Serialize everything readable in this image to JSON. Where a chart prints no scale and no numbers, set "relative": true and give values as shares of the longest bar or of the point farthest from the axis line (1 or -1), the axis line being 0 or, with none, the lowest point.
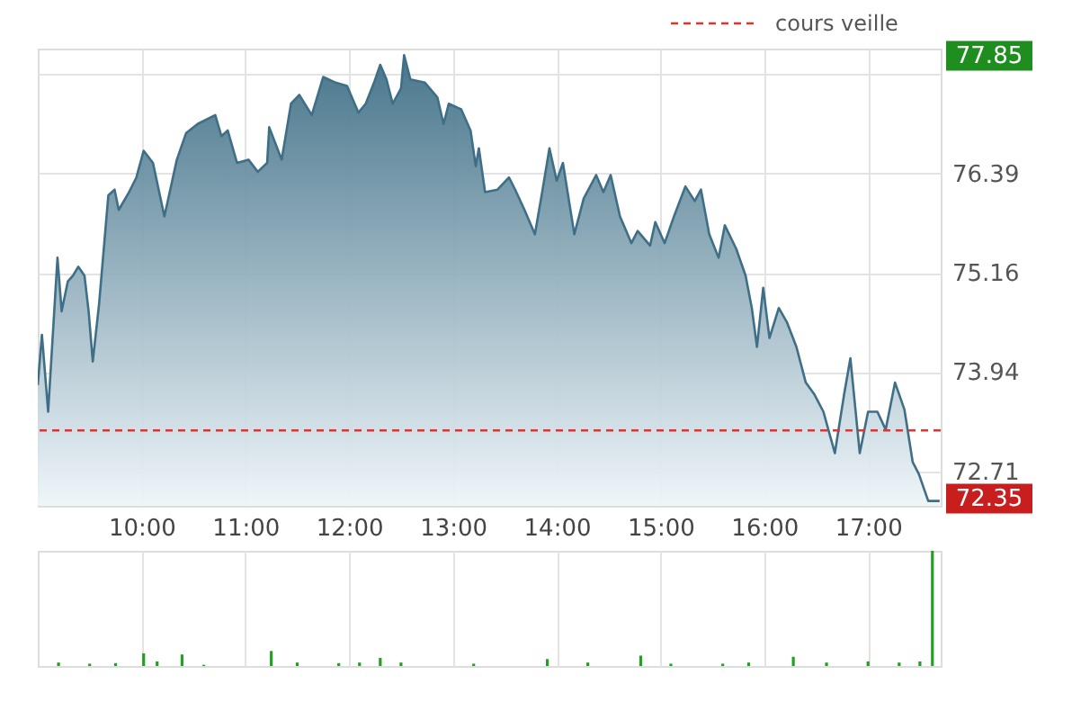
{
  "chart_data": [
    {
      "type": "area",
      "series": [
        {
          "color": "#3f6f86",
          "x": [
            9.0,
            9.04,
            9.1,
            9.19,
            9.23,
            9.29,
            9.34,
            9.39,
            9.45,
            9.49,
            9.53,
            9.59,
            9.68,
            9.74,
            9.78,
            9.88,
            9.95,
            10.02,
            10.11,
            10.17,
            10.22,
            10.34,
            10.43,
            10.54,
            10.71,
            10.77,
            10.83,
            10.92,
            11.03,
            11.12,
            11.21,
            11.23,
            11.35,
            11.44,
            11.52,
            11.64,
            11.75,
            11.87,
            11.98,
            12.09,
            12.16,
            12.24,
            12.3,
            12.36,
            12.42,
            12.5,
            12.53,
            12.59,
            12.73,
            12.85,
            12.91,
            12.96,
            13.08,
            13.17,
            13.22,
            13.25,
            13.31,
            13.43,
            13.54,
            13.6,
            13.69,
            13.74,
            13.79,
            13.86,
            13.93,
            14.0,
            14.06,
            14.17,
            14.26,
            14.38,
            14.45,
            14.52,
            14.61,
            14.72,
            14.78,
            14.9,
            14.95,
            15.04,
            15.13,
            15.24,
            15.33,
            15.39,
            15.47,
            15.56,
            15.62,
            15.73,
            15.82,
            15.88,
            15.93,
            15.99,
            16.05,
            16.14,
            16.22,
            16.31,
            16.4,
            16.48,
            16.57,
            16.68,
            16.77,
            16.83,
            16.92,
            17.0,
            17.09,
            17.17,
            17.26,
            17.35,
            17.43,
            17.49,
            17.58,
            17.69
          ],
          "values": [
            73.78,
            74.4,
            73.45,
            75.35,
            74.69,
            75.06,
            75.13,
            75.24,
            75.13,
            74.69,
            74.07,
            74.77,
            76.12,
            76.19,
            75.94,
            76.16,
            76.34,
            76.67,
            76.52,
            76.16,
            75.86,
            76.56,
            76.89,
            77.0,
            77.11,
            76.85,
            76.92,
            76.52,
            76.56,
            76.41,
            76.52,
            76.96,
            76.56,
            77.25,
            77.36,
            77.11,
            77.58,
            77.51,
            77.47,
            77.14,
            77.25,
            77.51,
            77.73,
            77.55,
            77.25,
            77.44,
            77.85,
            77.55,
            77.51,
            77.33,
            77.0,
            77.25,
            77.18,
            76.92,
            76.48,
            76.7,
            76.16,
            76.19,
            76.34,
            76.19,
            75.94,
            75.79,
            75.64,
            76.16,
            76.7,
            76.3,
            76.52,
            75.64,
            76.08,
            76.37,
            76.16,
            76.37,
            75.86,
            75.53,
            75.68,
            75.5,
            75.79,
            75.53,
            75.86,
            76.23,
            76.05,
            76.19,
            75.64,
            75.35,
            75.75,
            75.46,
            75.13,
            74.73,
            74.25,
            74.98,
            74.36,
            74.73,
            74.55,
            74.25,
            73.81,
            73.67,
            73.45,
            72.94,
            73.67,
            74.11,
            72.94,
            73.45,
            73.45,
            73.23,
            73.81,
            73.48,
            72.83,
            72.68,
            72.35,
            72.35
          ]
        }
      ],
      "xlim": [
        9.0,
        17.7
      ],
      "xticks": [
        {
          "value": 10,
          "label": "10:00"
        },
        {
          "value": 11,
          "label": "11:00"
        },
        {
          "value": 12,
          "label": "12:00"
        },
        {
          "value": 13,
          "label": "13:00"
        },
        {
          "value": 14,
          "label": "14:00"
        },
        {
          "value": 15,
          "label": "15:00"
        },
        {
          "value": 16,
          "label": "16:00"
        },
        {
          "value": 17,
          "label": "17:00"
        }
      ],
      "ylim": [
        72.29,
        77.93
      ],
      "yticks": [
        72.71,
        73.94,
        75.16,
        76.39,
        {
          "value": 77.62,
          "label": null
        }
      ],
      "grid": true,
      "ref_lines": [
        {
          "axis": "y",
          "value": 73.22,
          "label": "cours veille",
          "color": "#e8302c",
          "line_style": "dashed"
        }
      ],
      "legend": "top right",
      "annotations": [
        "77.85",
        "72.35"
      ]
    },
    {
      "type": "bar",
      "relative": true,
      "color": "#22a022",
      "x": [
        9.2,
        9.5,
        9.75,
        10.02,
        10.15,
        10.39,
        10.6,
        11.25,
        11.5,
        11.9,
        12.1,
        12.3,
        12.5,
        13.2,
        13.91,
        14.3,
        14.81,
        15.1,
        15.6,
        15.85,
        16.28,
        16.6,
        17.0,
        17.3,
        17.5,
        17.62
      ],
      "values": [
        0.03,
        0.02,
        0.025,
        0.11,
        0.04,
        0.1,
        0.01,
        0.13,
        0.03,
        0.025,
        0.03,
        0.07,
        0.03,
        0.02,
        0.06,
        0.03,
        0.09,
        0.02,
        0.02,
        0.03,
        0.08,
        0.03,
        0.04,
        0.03,
        0.04,
        1.0
      ],
      "xlim": [
        9.0,
        17.7
      ],
      "xticks": [
        10,
        11,
        12,
        13,
        14,
        15,
        16,
        17
      ],
      "tick_labels": false,
      "grid": "x"
    }
  ]
}
